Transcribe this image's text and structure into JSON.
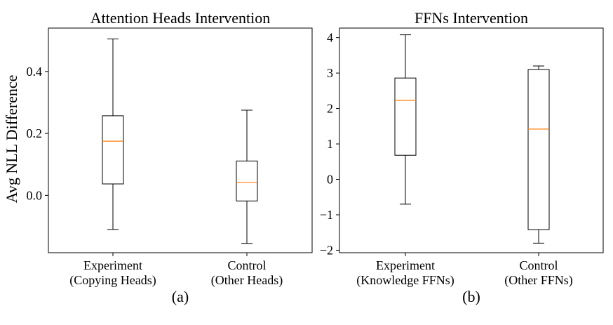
{
  "y_axis_label": "Avg NLL Difference",
  "panels": [
    {
      "title": "Attention Heads Intervention",
      "caption": "(a)",
      "y_ticks": [
        "0.0",
        "0.2",
        "0.4"
      ],
      "categories": [
        {
          "line1": "Experiment",
          "line2": "(Copying Heads)"
        },
        {
          "line1": "Control",
          "line2": "(Other Heads)"
        }
      ]
    },
    {
      "title": "FFNs Intervention",
      "caption": "(b)",
      "y_ticks": [
        "−2",
        "−1",
        "0",
        "1",
        "2",
        "3",
        "4"
      ],
      "categories": [
        {
          "line1": "Experiment",
          "line2": "(Knowledge FFNs)"
        },
        {
          "line1": "Control",
          "line2": "(Other FFNs)"
        }
      ]
    }
  ],
  "chart_data": [
    {
      "type": "box",
      "title": "Attention Heads Intervention",
      "ylabel": "Avg NLL Difference",
      "ylim": [
        -0.185,
        0.54
      ],
      "yticks": [
        0.0,
        0.2,
        0.4
      ],
      "categories": [
        "Experiment\n(Copying Heads)",
        "Control\n(Other Heads)"
      ],
      "boxes": [
        {
          "whisker_low": -0.11,
          "q1": 0.037,
          "median": 0.175,
          "q3": 0.257,
          "whisker_high": 0.505
        },
        {
          "whisker_low": -0.155,
          "q1": -0.018,
          "median": 0.042,
          "q3": 0.111,
          "whisker_high": 0.275
        }
      ],
      "median_color": "#ff7f0e"
    },
    {
      "type": "box",
      "title": "FFNs Intervention",
      "ylabel": "",
      "ylim": [
        -2.07,
        4.27
      ],
      "yticks": [
        -2,
        -1,
        0,
        1,
        2,
        3,
        4
      ],
      "categories": [
        "Experiment\n(Knowledge FFNs)",
        "Control\n(Other FFNs)"
      ],
      "boxes": [
        {
          "whisker_low": -0.7,
          "q1": 0.68,
          "median": 2.23,
          "q3": 2.86,
          "whisker_high": 4.08
        },
        {
          "whisker_low": -1.8,
          "q1": -1.42,
          "median": 1.42,
          "q3": 3.1,
          "whisker_high": 3.2
        }
      ],
      "median_color": "#ff7f0e"
    }
  ]
}
